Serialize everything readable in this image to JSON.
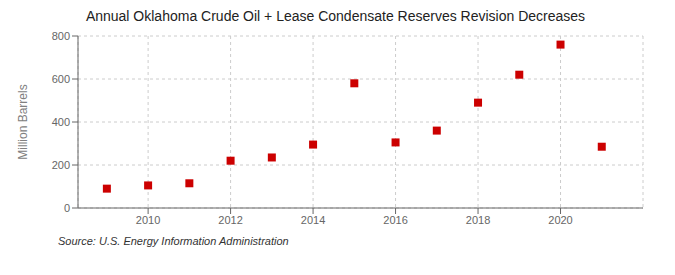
{
  "chart_data": {
    "type": "scatter",
    "title": "Annual Oklahoma Crude Oil + Lease Condensate Reserves Revision Decreases",
    "ylabel": "Million Barrels",
    "annotations": [
      "Source: U.S. Energy Information Administration"
    ],
    "x": [
      2009,
      2010,
      2011,
      2012,
      2013,
      2014,
      2015,
      2016,
      2017,
      2018,
      2019,
      2020,
      2021
    ],
    "values": [
      90,
      105,
      115,
      220,
      235,
      295,
      580,
      305,
      360,
      490,
      620,
      760,
      285
    ],
    "color": "#cc0000",
    "marker": "square",
    "xlim": [
      2008.3,
      2022.0
    ],
    "ylim": [
      0,
      800
    ],
    "xticks": [
      2010,
      2012,
      2014,
      2016,
      2018,
      2020
    ],
    "yticks": [
      0,
      200,
      400,
      600,
      800
    ],
    "grid": true
  }
}
